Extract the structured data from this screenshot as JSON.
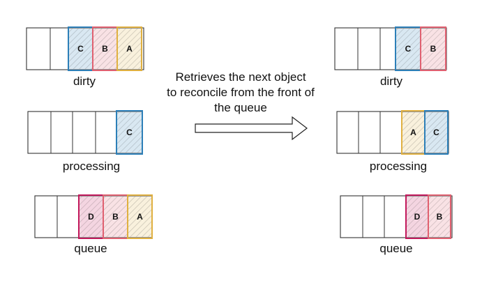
{
  "caption_lines": [
    "Retrieves the next object",
    "to reconcile from the front of",
    "the queue"
  ],
  "colors": {
    "C": "#2c7fb8",
    "B": "#e06070",
    "A": "#e0b040",
    "D": "#c2185b"
  },
  "before": {
    "dirty": {
      "label": "dirty",
      "items": [
        "C",
        "B",
        "A"
      ]
    },
    "processing": {
      "label": "processing",
      "items": [
        "C"
      ]
    },
    "queue": {
      "label": "queue",
      "items": [
        "D",
        "B",
        "A"
      ]
    }
  },
  "after": {
    "dirty": {
      "label": "dirty",
      "items": [
        "C",
        "B"
      ]
    },
    "processing": {
      "label": "processing",
      "items": [
        "A",
        "C"
      ]
    },
    "queue": {
      "label": "queue",
      "items": [
        "D",
        "B"
      ]
    }
  }
}
